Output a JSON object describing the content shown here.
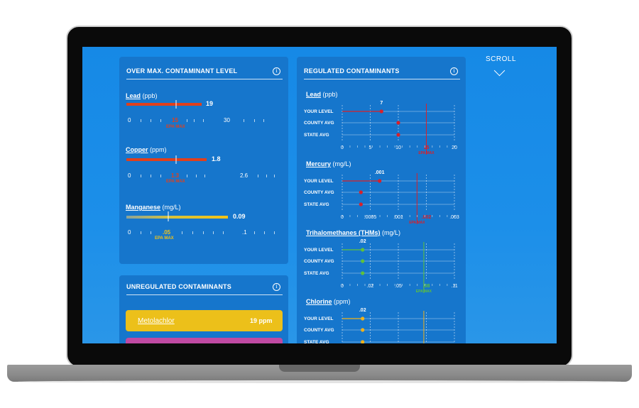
{
  "scroll": {
    "label": "SCROLL"
  },
  "over_max": {
    "title": "OVER MAX. CONTAMINANT LEVEL",
    "items": [
      {
        "name": "Lead",
        "unit": "(ppb)",
        "value_label": "19",
        "value": 19,
        "epa_label": "15",
        "ticks": [
          "0",
          "30"
        ],
        "epa_caption": "EPA MAX",
        "color": "#e0401c"
      },
      {
        "name": "Copper",
        "unit": "(ppm)",
        "value_label": "1.8",
        "value": 1.8,
        "epa_label": "1.3",
        "ticks": [
          "0",
          "2.6"
        ],
        "epa_caption": "EPA MAX",
        "color": "#e0401c"
      },
      {
        "name": "Manganese",
        "unit": "(mg/L)",
        "value_label": "0.09",
        "value": 0.09,
        "epa_label": ".05",
        "ticks": [
          "0",
          ".1"
        ],
        "epa_caption": "EPA MAX",
        "color": "#f2c316"
      }
    ]
  },
  "unregulated": {
    "title": "UNREGULATED CONTAMINANTS",
    "items": [
      {
        "name": "Metolachlor",
        "value": "19 ppm",
        "color": "#ecc01a"
      },
      {
        "name": "",
        "value": "",
        "color": "#c04aa3"
      }
    ]
  },
  "regulated": {
    "title": "REGULATED CONTAMINANTS",
    "row_labels": [
      "YOUR LEVEL",
      "COUNTY AVG",
      "STATE AVG"
    ],
    "epa_caption": "EPA MAX",
    "charts": [
      {
        "name": "Lead",
        "unit": "(ppb)",
        "ticks": [
          "0",
          "5",
          "10",
          "15",
          "20"
        ],
        "your_label": "7",
        "epa_tick": "15",
        "color": "#d8202a",
        "values": [
          7,
          10,
          10
        ],
        "max": 20,
        "epa": 15
      },
      {
        "name": "Mercury",
        "unit": "(mg/L)",
        "ticks": [
          "0",
          ".0005",
          ".001",
          ".002",
          ".003"
        ],
        "your_label": ".001",
        "epa_tick": ".002",
        "color": "#d8202a",
        "values": [
          0.001,
          0.0005,
          0.0005
        ],
        "max": 0.003,
        "epa": 0.002
      },
      {
        "name": "Trihalomethanes (THMs)",
        "unit": "(mg/L)",
        "ticks": [
          "0",
          ".02",
          ".05",
          ".08",
          ".11"
        ],
        "your_label": ".02",
        "epa_tick": ".08",
        "color": "#5fc23a",
        "values": [
          0.02,
          0.02,
          0.02
        ],
        "max": 0.11,
        "epa": 0.08
      },
      {
        "name": "Chlorine",
        "unit": "(ppm)",
        "ticks": [],
        "your_label": ".02",
        "epa_tick": "",
        "color": "#f0b21a",
        "values": [
          0.02,
          0.02,
          0.02
        ],
        "max": 0.11,
        "epa": 0.08
      }
    ]
  }
}
